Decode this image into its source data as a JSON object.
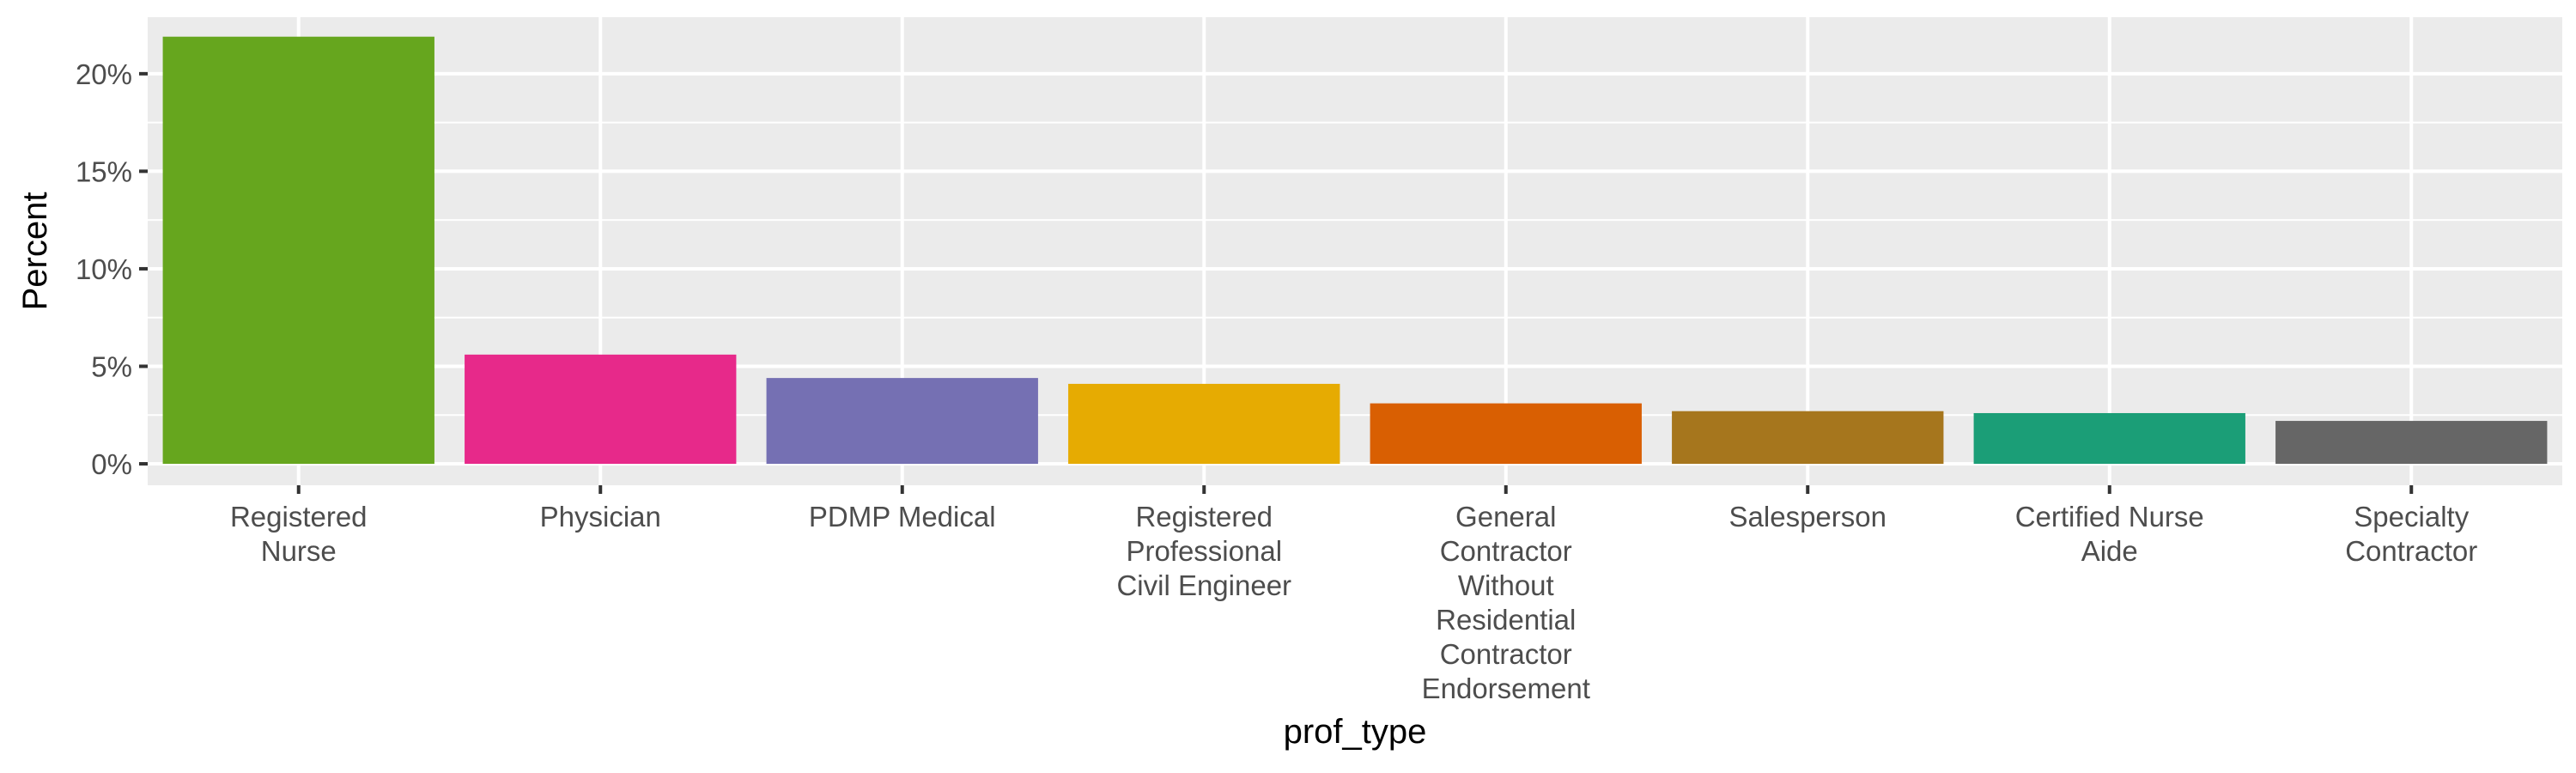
{
  "chart_data": {
    "type": "bar",
    "xlabel": "prof_type",
    "ylabel": "Percent",
    "ylim": [
      -0.011,
      0.229
    ],
    "grid": true,
    "legend": "none",
    "y_ticks": [
      0,
      0.05,
      0.1,
      0.15,
      0.2
    ],
    "y_tick_labels": [
      "0%",
      "5%",
      "10%",
      "15%",
      "20%"
    ],
    "categories": [
      "Registered Nurse",
      "Physician",
      "PDMP Medical",
      "Registered Professional Civil Engineer",
      "General Contractor Without Residential Contractor Endorsement",
      "Salesperson",
      "Certified Nurse Aide",
      "Specialty Contractor"
    ],
    "category_label_lines": [
      [
        "Registered",
        "Nurse"
      ],
      [
        "Physician"
      ],
      [
        "PDMP Medical"
      ],
      [
        "Registered",
        "Professional",
        "Civil Engineer"
      ],
      [
        "General",
        "Contractor",
        "Without",
        "Residential",
        "Contractor",
        "Endorsement"
      ],
      [
        "Salesperson"
      ],
      [
        "Certified Nurse",
        "Aide"
      ],
      [
        "Specialty",
        "Contractor"
      ]
    ],
    "values": [
      0.219,
      0.056,
      0.044,
      0.041,
      0.031,
      0.027,
      0.026,
      0.022
    ],
    "colors": [
      "#66A61E",
      "#E7298A",
      "#7570B3",
      "#E6AB02",
      "#D95F02",
      "#A6761D",
      "#1B9E77",
      "#666666"
    ]
  }
}
